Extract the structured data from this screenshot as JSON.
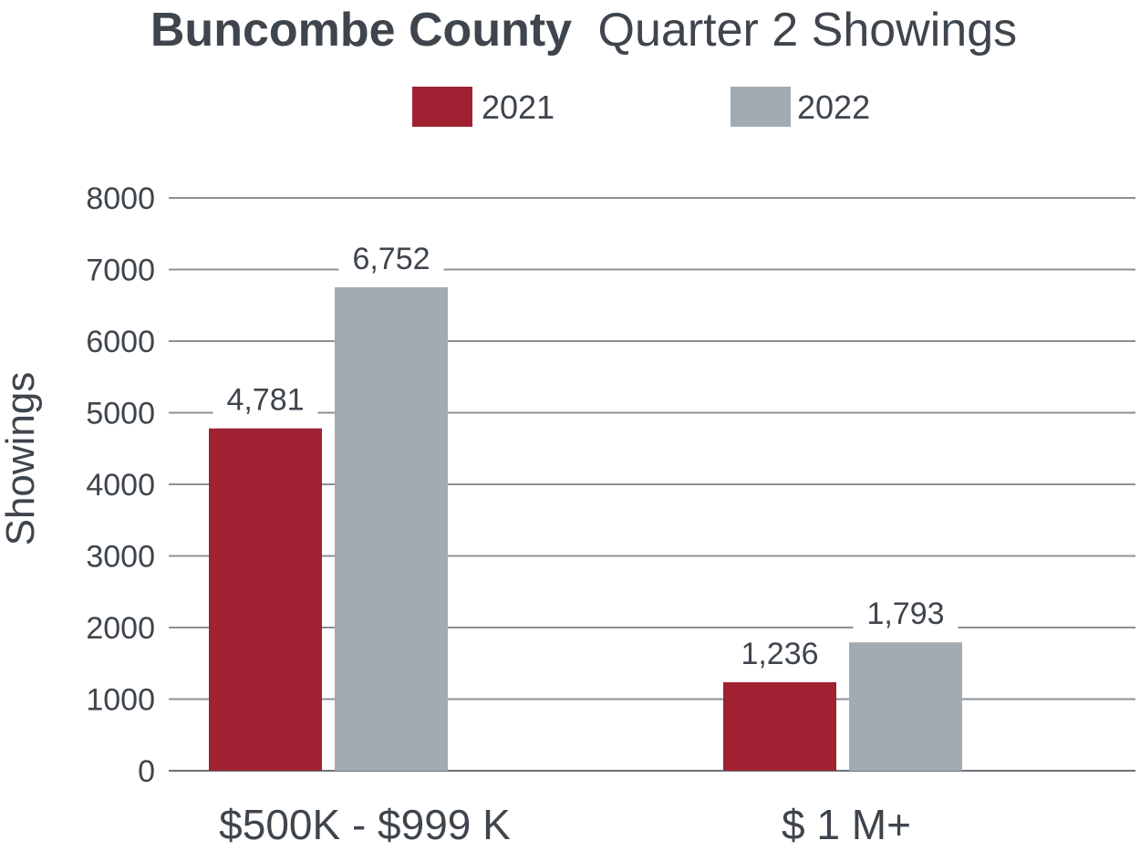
{
  "chart_data": {
    "type": "bar",
    "title_bold": "Buncombe County",
    "title_rest": "Quarter 2 Showings",
    "ylabel": "Showings",
    "xlabel": "",
    "categories": [
      "$500K - $999 K",
      "$ 1 M+"
    ],
    "series": [
      {
        "name": "2021",
        "color": "#a02232",
        "values": [
          4781,
          1236
        ],
        "labels": [
          "4,781",
          "1,236"
        ]
      },
      {
        "name": "2022",
        "color": "#a2abb1",
        "values": [
          6752,
          1793
        ],
        "labels": [
          "6,752",
          "1,793"
        ]
      }
    ],
    "ylim": [
      0,
      8000
    ],
    "yticks": [
      0,
      1000,
      2000,
      3000,
      4000,
      5000,
      6000,
      7000,
      8000
    ],
    "grid": true,
    "legend": "top-center"
  }
}
